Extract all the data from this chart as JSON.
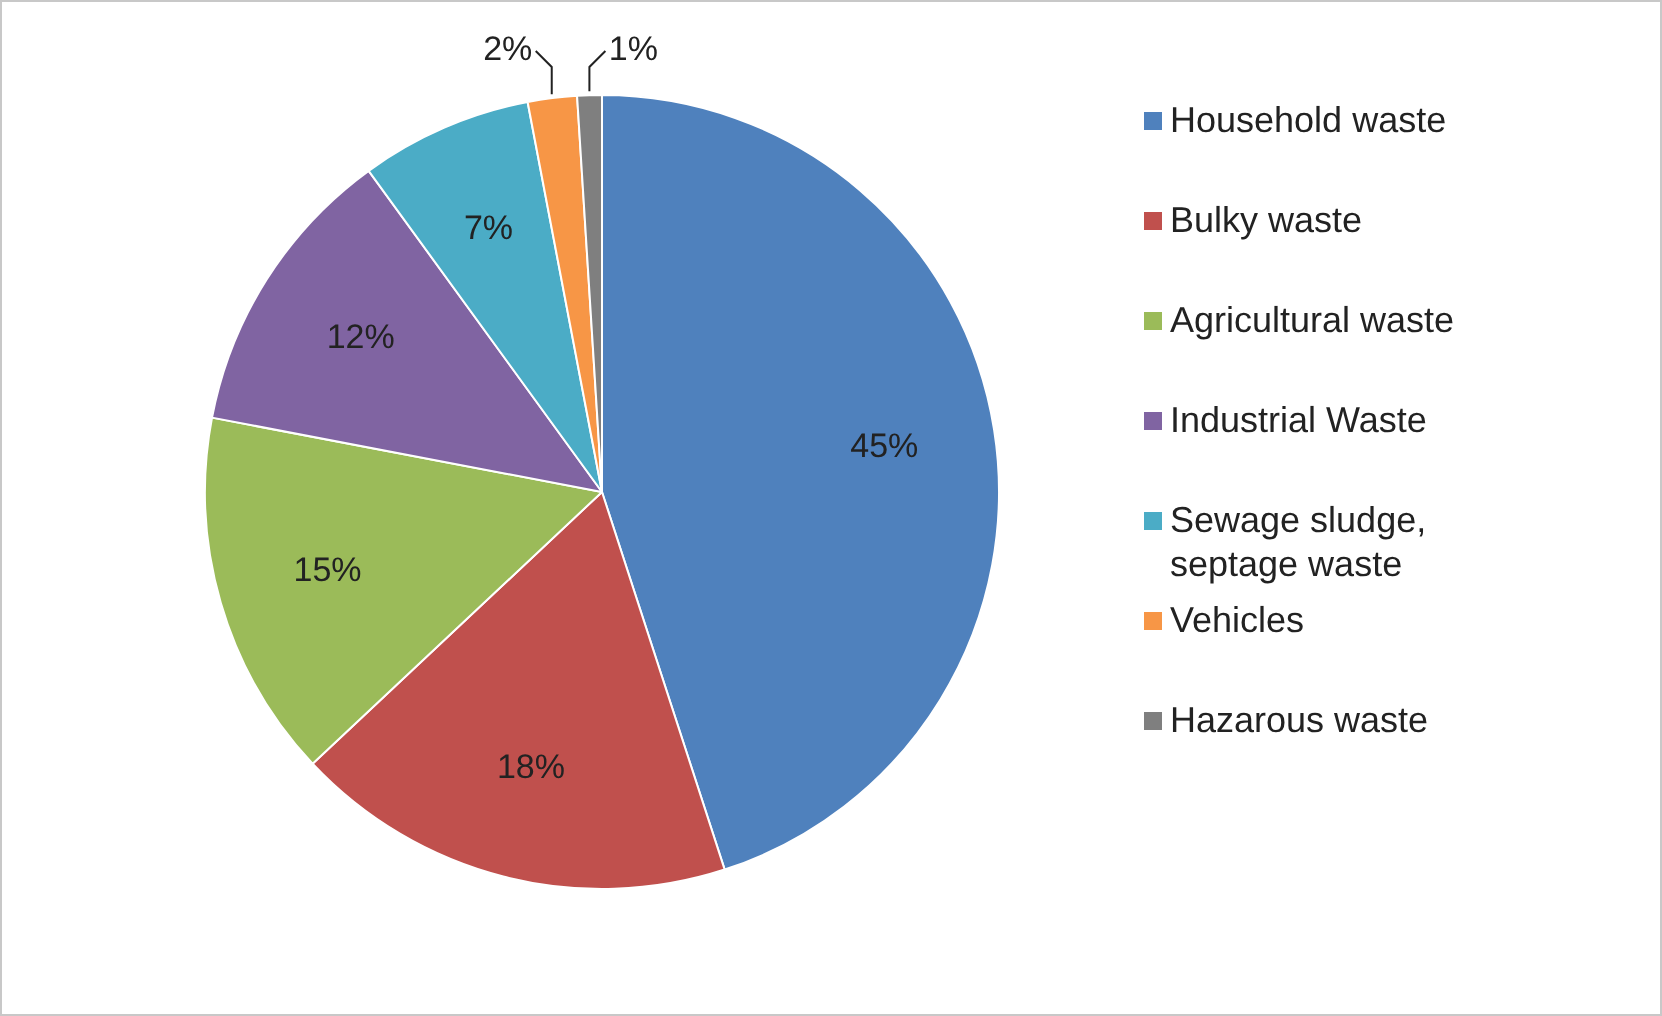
{
  "chart_data": {
    "type": "pie",
    "categories": [
      "Household waste",
      "Bulky waste",
      "Agricultural waste",
      "Industrial Waste",
      "Sewage sludge, septage waste",
      "Vehicles",
      "Hazarous waste"
    ],
    "values": [
      45,
      18,
      15,
      12,
      7,
      2,
      1
    ],
    "colors": [
      "#4f81bd",
      "#c0504d",
      "#9bbb59",
      "#8064a2",
      "#4bacc6",
      "#f79646",
      "#7f7f7f"
    ],
    "value_labels": [
      "45%",
      "18%",
      "15%",
      "12%",
      "7%",
      "2%",
      "1%"
    ],
    "legend": "right"
  }
}
